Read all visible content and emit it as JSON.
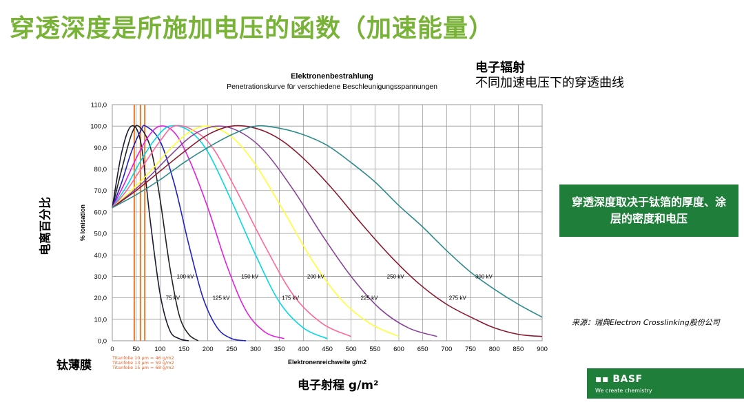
{
  "slide": {
    "title": "穿透深度是所施加电压的函数（加速能量）",
    "side_title_1": "电子辐射",
    "side_title_2": "不同加速电压下的穿透曲线",
    "callout": "穿透深度取决于钛箔的厚度、涂层的密度和电压",
    "source": "来源：瑞典Electron Crosslinking股份公司",
    "ylabel_cn": "电离百分比",
    "xlabel_cn": "电子射程 g/m²",
    "foil_label_cn": "钛薄膜",
    "foil_notes": [
      "Titanfolie 10 µm = 46 g/m2",
      "Titanfolie 13 µm = 59 g/m2",
      "Titanfolie 15 µm = 68 g/m2"
    ],
    "logo_name": "BASF",
    "logo_tagline": "We create chemistry"
  },
  "chart_data": {
    "type": "line",
    "title": "Elektronenbestrahlung",
    "subtitle": "Penetrationskurve für verschiedene Beschleunigungsspannungen",
    "xlabel": "Elektronenreichweite g/m2",
    "ylabel": "% Ionisation",
    "xlim": [
      0,
      900
    ],
    "ylim": [
      0,
      110
    ],
    "xticks": [
      0,
      50,
      100,
      150,
      200,
      250,
      300,
      350,
      400,
      450,
      500,
      550,
      600,
      650,
      700,
      750,
      800,
      850,
      900
    ],
    "yticks": [
      "0,0",
      "10,0",
      "20,0",
      "30,0",
      "40,0",
      "50,0",
      "60,0",
      "70,0",
      "80,0",
      "90,0",
      "100,0",
      "110,0"
    ],
    "grid": true,
    "foil_lines_x": [
      46,
      59,
      68
    ],
    "series": [
      {
        "name": "75 kV",
        "color": "#1a1a2e",
        "x": [
          0,
          20,
          40,
          60,
          80,
          100,
          120,
          140,
          160
        ],
        "values": [
          62,
          88,
          100,
          92,
          55,
          22,
          5,
          1,
          0
        ]
      },
      {
        "name": "100 kV",
        "color": "#222222",
        "x": [
          0,
          20,
          40,
          55,
          80,
          100,
          120,
          140,
          160,
          180
        ],
        "values": [
          62,
          80,
          96,
          100,
          90,
          66,
          35,
          12,
          3,
          0
        ]
      },
      {
        "name": "125 kV",
        "color": "#2020c0",
        "x": [
          0,
          20,
          40,
          60,
          70,
          100,
          130,
          160,
          190,
          220,
          250,
          280
        ],
        "values": [
          62,
          74,
          88,
          98,
          100,
          93,
          73,
          45,
          20,
          6,
          1,
          0
        ]
      },
      {
        "name": "150 kV",
        "color": "#e020e0",
        "x": [
          0,
          25,
          50,
          75,
          100,
          130,
          160,
          200,
          240,
          280,
          320,
          360
        ],
        "values": [
          62,
          73,
          85,
          95,
          100,
          97,
          85,
          62,
          35,
          14,
          4,
          1
        ]
      },
      {
        "name": "175 kV",
        "color": "#00d8e8",
        "x": [
          0,
          30,
          60,
          90,
          120,
          160,
          200,
          250,
          300,
          350,
          400,
          450
        ],
        "values": [
          62,
          72,
          84,
          94,
          100,
          98,
          88,
          65,
          40,
          18,
          6,
          1
        ]
      },
      {
        "name": "200 kV",
        "color": "#ff6699",
        "x": [
          0,
          30,
          60,
          100,
          130,
          170,
          210,
          260,
          320,
          380,
          440,
          500
        ],
        "values": [
          62,
          70,
          80,
          93,
          100,
          98,
          90,
          70,
          44,
          21,
          8,
          2
        ]
      },
      {
        "name": "225 kV",
        "color": "#ffff33",
        "x": [
          0,
          40,
          80,
          120,
          160,
          200,
          250,
          300,
          360,
          420,
          480,
          540,
          600
        ],
        "values": [
          62,
          70,
          79,
          89,
          97,
          100,
          95,
          82,
          60,
          37,
          19,
          8,
          2
        ]
      },
      {
        "name": "250 kV",
        "color": "#884499",
        "x": [
          0,
          40,
          80,
          120,
          170,
          220,
          270,
          320,
          380,
          440,
          500,
          560,
          620,
          680
        ],
        "values": [
          62,
          69,
          77,
          86,
          96,
          100,
          97,
          88,
          70,
          49,
          30,
          15,
          6,
          2
        ]
      },
      {
        "name": "275 kV",
        "color": "#8b1a2e",
        "x": [
          0,
          50,
          100,
          150,
          200,
          250,
          300,
          350,
          400,
          460,
          520,
          580,
          640,
          700,
          760,
          800,
          850,
          900
        ],
        "values": [
          62,
          70,
          79,
          88,
          96,
          100,
          99,
          94,
          85,
          71,
          55,
          40,
          27,
          17,
          10,
          6,
          3,
          2
        ]
      },
      {
        "name": "300 kV",
        "color": "#2e8b8b",
        "x": [
          0,
          50,
          100,
          150,
          200,
          250,
          300,
          350,
          400,
          450,
          500,
          550,
          600,
          650,
          700,
          750,
          800,
          850,
          900
        ],
        "values": [
          62,
          68,
          75,
          83,
          90,
          96,
          100,
          99,
          96,
          91,
          83,
          74,
          63,
          53,
          42,
          32,
          24,
          17,
          11
        ]
      }
    ],
    "curve_labels": [
      {
        "text": "75 kV",
        "x": 112,
        "y": 20
      },
      {
        "text": "100 kV",
        "x": 135,
        "y": 30
      },
      {
        "text": "125 kV",
        "x": 210,
        "y": 20
      },
      {
        "text": "150 kV",
        "x": 270,
        "y": 30
      },
      {
        "text": "175 kV",
        "x": 355,
        "y": 20
      },
      {
        "text": "200 kV",
        "x": 408,
        "y": 30
      },
      {
        "text": "225 kV",
        "x": 520,
        "y": 20
      },
      {
        "text": "250 kV",
        "x": 575,
        "y": 30
      },
      {
        "text": "275 kV",
        "x": 705,
        "y": 20
      },
      {
        "text": "300 kV",
        "x": 760,
        "y": 30
      }
    ]
  }
}
